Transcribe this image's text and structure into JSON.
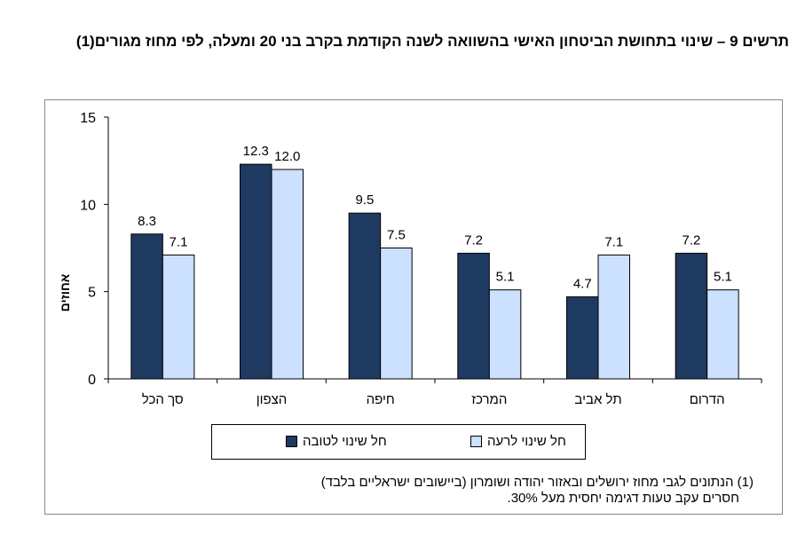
{
  "title": "תרשים 9 – שינוי בתחושת הביטחון האישי בהשוואה לשנה הקודמת בקרב בני 20 ומעלה, לפי מחוז מגורים(1)",
  "chart_data": {
    "type": "bar",
    "categories": [
      "סך הכל",
      "הצפון",
      "חיפה",
      "המרכז",
      "תל אביב",
      "הדרום"
    ],
    "series": [
      {
        "name": "חל שינוי לטובה",
        "color": "#1f3a60",
        "values": [
          8.3,
          12.3,
          9.5,
          7.2,
          4.7,
          7.2
        ]
      },
      {
        "name": "חל שינוי לרעה",
        "color": "#cce0ff",
        "values": [
          7.1,
          12.0,
          7.5,
          5.1,
          7.1,
          5.1
        ]
      }
    ],
    "ylabel": "אחוזים",
    "ylim": [
      0,
      15
    ],
    "yticks": [
      0,
      5,
      10,
      15
    ],
    "grid": false,
    "legend": "bottom"
  },
  "footnote": [
    "(1) הנתונים לגבי מחוז ירושלים ובאזור יהודה ושומרון (ביישובים ישראליים בלבד)",
    "חסרים עקב טעות דגימה יחסית מעל 30%."
  ]
}
